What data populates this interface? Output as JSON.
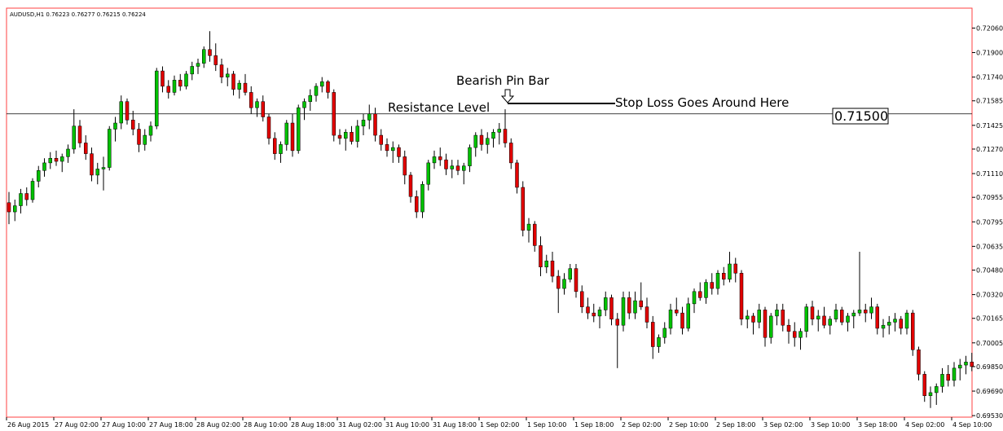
{
  "chart_data": {
    "type": "candlestick",
    "header": "AUDUSD,H1  0.76223 0.76277 0.76215 0.76224",
    "ylim": [
      0.6952,
      0.7219
    ],
    "yticks": [
      {
        "value": 0.7206,
        "label": "0.72060"
      },
      {
        "value": 0.719,
        "label": "0.71900"
      },
      {
        "value": 0.7174,
        "label": "0.71740"
      },
      {
        "value": 0.71585,
        "label": "0.71585"
      },
      {
        "value": 0.71425,
        "label": "0.71425"
      },
      {
        "value": 0.7127,
        "label": "0.71270"
      },
      {
        "value": 0.7111,
        "label": "0.71110"
      },
      {
        "value": 0.70955,
        "label": "0.70955"
      },
      {
        "value": 0.70795,
        "label": "0.70795"
      },
      {
        "value": 0.70635,
        "label": "0.70635"
      },
      {
        "value": 0.7048,
        "label": "0.70480"
      },
      {
        "value": 0.7032,
        "label": "0.70320"
      },
      {
        "value": 0.70165,
        "label": "0.70165"
      },
      {
        "value": 0.70005,
        "label": "0.70005"
      },
      {
        "value": 0.6985,
        "label": "0.69850"
      },
      {
        "value": 0.6969,
        "label": "0.69690"
      },
      {
        "value": 0.6953,
        "label": "0.69530"
      }
    ],
    "up_color": "#00c000",
    "down_color": "#e00000",
    "wick_color": "#000000",
    "level": {
      "value": 0.715,
      "label": "0.71500"
    },
    "annotations": {
      "pin_bar": "Bearish Pin Bar",
      "resistance": "Resistance Level",
      "stop_loss": "Stop Loss Goes Around Here"
    },
    "categories": [
      "26 Aug 2015",
      null,
      null,
      null,
      null,
      null,
      null,
      null,
      "27 Aug 02:00",
      null,
      null,
      null,
      null,
      null,
      null,
      null,
      "27 Aug 10:00",
      null,
      null,
      null,
      null,
      null,
      null,
      null,
      "27 Aug 18:00",
      null,
      null,
      null,
      null,
      null,
      null,
      null,
      "28 Aug 02:00",
      null,
      null,
      null,
      null,
      null,
      null,
      null,
      "28 Aug 10:00",
      null,
      null,
      null,
      null,
      null,
      null,
      null,
      "28 Aug 18:00",
      null,
      null,
      null,
      null,
      null,
      null,
      null,
      "31 Aug 02:00",
      null,
      null,
      null,
      null,
      null,
      null,
      null,
      "31 Aug 10:00",
      null,
      null,
      null,
      null,
      null,
      null,
      null,
      "31 Aug 18:00",
      null,
      null,
      null,
      null,
      null,
      null,
      null,
      "1 Sep 02:00",
      null,
      null,
      null,
      null,
      null,
      null,
      null,
      "1 Sep 10:00",
      null,
      null,
      null,
      null,
      null,
      null,
      null,
      "1 Sep 18:00",
      null,
      null,
      null,
      null,
      null,
      null,
      null,
      "2 Sep 02:00",
      null,
      null,
      null,
      null,
      null,
      null,
      null,
      "2 Sep 10:00",
      null,
      null,
      null,
      null,
      null,
      null,
      null,
      "2 Sep 18:00",
      null,
      null,
      null,
      null,
      null,
      null,
      null,
      "3 Sep 02:00",
      null,
      null,
      null,
      null,
      null,
      null,
      null,
      "3 Sep 10:00",
      null,
      null,
      null,
      null,
      null,
      null,
      null,
      "3 Sep 18:00",
      null,
      null,
      null,
      null,
      null,
      null,
      null,
      "4 Sep 02:00",
      null,
      null,
      null,
      null,
      null,
      null,
      null,
      "4 Sep 10:00",
      null,
      null,
      null
    ],
    "ohlc": [
      [
        0.7092,
        0.7099,
        0.7078,
        0.7086
      ],
      [
        0.7086,
        0.7094,
        0.708,
        0.709
      ],
      [
        0.709,
        0.7101,
        0.7085,
        0.7098
      ],
      [
        0.7098,
        0.7102,
        0.709,
        0.7094
      ],
      [
        0.7094,
        0.7108,
        0.7092,
        0.7106
      ],
      [
        0.7106,
        0.7116,
        0.7102,
        0.7113
      ],
      [
        0.7113,
        0.7121,
        0.7109,
        0.7118
      ],
      [
        0.7118,
        0.7125,
        0.7114,
        0.7121
      ],
      [
        0.7121,
        0.7126,
        0.7116,
        0.7119
      ],
      [
        0.7119,
        0.7124,
        0.7112,
        0.7122
      ],
      [
        0.7122,
        0.713,
        0.7118,
        0.7127
      ],
      [
        0.7127,
        0.7153,
        0.7124,
        0.7142
      ],
      [
        0.7142,
        0.7146,
        0.7128,
        0.7131
      ],
      [
        0.7131,
        0.7136,
        0.712,
        0.7124
      ],
      [
        0.7124,
        0.7128,
        0.7106,
        0.711
      ],
      [
        0.711,
        0.7118,
        0.7104,
        0.7114
      ],
      [
        0.7114,
        0.7122,
        0.71,
        0.7115
      ],
      [
        0.7115,
        0.7142,
        0.7113,
        0.714
      ],
      [
        0.714,
        0.7148,
        0.7132,
        0.7144
      ],
      [
        0.7144,
        0.7162,
        0.714,
        0.7158
      ],
      [
        0.7158,
        0.716,
        0.7143,
        0.7146
      ],
      [
        0.7146,
        0.7152,
        0.7136,
        0.714
      ],
      [
        0.714,
        0.7144,
        0.7125,
        0.713
      ],
      [
        0.713,
        0.714,
        0.7126,
        0.7136
      ],
      [
        0.7136,
        0.7145,
        0.7132,
        0.7142
      ],
      [
        0.7142,
        0.718,
        0.714,
        0.7178
      ],
      [
        0.7178,
        0.7181,
        0.7164,
        0.7168
      ],
      [
        0.7168,
        0.7172,
        0.716,
        0.7164
      ],
      [
        0.7164,
        0.7175,
        0.7162,
        0.7172
      ],
      [
        0.7172,
        0.7176,
        0.7165,
        0.7168
      ],
      [
        0.7168,
        0.7178,
        0.7166,
        0.7176
      ],
      [
        0.7176,
        0.7184,
        0.7172,
        0.7181
      ],
      [
        0.7181,
        0.7186,
        0.7176,
        0.7183
      ],
      [
        0.7183,
        0.7194,
        0.718,
        0.7192
      ],
      [
        0.7192,
        0.7204,
        0.7184,
        0.7188
      ],
      [
        0.7188,
        0.7196,
        0.7178,
        0.7182
      ],
      [
        0.7182,
        0.7186,
        0.717,
        0.7174
      ],
      [
        0.7174,
        0.718,
        0.7168,
        0.7176
      ],
      [
        0.7176,
        0.7178,
        0.7162,
        0.7166
      ],
      [
        0.7166,
        0.7172,
        0.716,
        0.717
      ],
      [
        0.717,
        0.7176,
        0.7162,
        0.7164
      ],
      [
        0.7164,
        0.7168,
        0.715,
        0.7154
      ],
      [
        0.7154,
        0.716,
        0.7148,
        0.7158
      ],
      [
        0.7158,
        0.7162,
        0.7145,
        0.7148
      ],
      [
        0.7148,
        0.715,
        0.713,
        0.7134
      ],
      [
        0.7134,
        0.7138,
        0.712,
        0.7124
      ],
      [
        0.7124,
        0.7132,
        0.7118,
        0.713
      ],
      [
        0.713,
        0.7146,
        0.7126,
        0.7144
      ],
      [
        0.7144,
        0.715,
        0.7122,
        0.7126
      ],
      [
        0.7126,
        0.7156,
        0.7124,
        0.7154
      ],
      [
        0.7154,
        0.716,
        0.7146,
        0.7158
      ],
      [
        0.7158,
        0.7166,
        0.7152,
        0.7162
      ],
      [
        0.7162,
        0.717,
        0.7158,
        0.7168
      ],
      [
        0.7168,
        0.7174,
        0.7164,
        0.7171
      ],
      [
        0.7171,
        0.7172,
        0.716,
        0.7164
      ],
      [
        0.7164,
        0.7166,
        0.7132,
        0.7136
      ],
      [
        0.7136,
        0.714,
        0.713,
        0.7134
      ],
      [
        0.7134,
        0.714,
        0.7126,
        0.7138
      ],
      [
        0.7138,
        0.7142,
        0.713,
        0.7132
      ],
      [
        0.7132,
        0.7146,
        0.7128,
        0.7142
      ],
      [
        0.7142,
        0.715,
        0.7136,
        0.7146
      ],
      [
        0.7146,
        0.7156,
        0.714,
        0.715
      ],
      [
        0.715,
        0.7154,
        0.7132,
        0.7136
      ],
      [
        0.7136,
        0.714,
        0.7126,
        0.713
      ],
      [
        0.713,
        0.7134,
        0.7122,
        0.7126
      ],
      [
        0.7126,
        0.7132,
        0.7118,
        0.7128
      ],
      [
        0.7128,
        0.713,
        0.7118,
        0.7122
      ],
      [
        0.7122,
        0.7126,
        0.7104,
        0.711
      ],
      [
        0.711,
        0.7112,
        0.7092,
        0.7096
      ],
      [
        0.7096,
        0.71,
        0.7082,
        0.7086
      ],
      [
        0.7086,
        0.7106,
        0.7082,
        0.7104
      ],
      [
        0.7104,
        0.712,
        0.71,
        0.7118
      ],
      [
        0.7118,
        0.7126,
        0.7114,
        0.7122
      ],
      [
        0.7122,
        0.7128,
        0.7116,
        0.712
      ],
      [
        0.712,
        0.7124,
        0.711,
        0.7114
      ],
      [
        0.7114,
        0.712,
        0.7108,
        0.7116
      ],
      [
        0.7116,
        0.712,
        0.711,
        0.7113
      ],
      [
        0.7113,
        0.7118,
        0.7104,
        0.7116
      ],
      [
        0.7116,
        0.713,
        0.7112,
        0.7128
      ],
      [
        0.7128,
        0.7138,
        0.7122,
        0.7136
      ],
      [
        0.7136,
        0.714,
        0.7126,
        0.713
      ],
      [
        0.713,
        0.7138,
        0.7124,
        0.7134
      ],
      [
        0.7134,
        0.714,
        0.7128,
        0.7138
      ],
      [
        0.7138,
        0.7144,
        0.713,
        0.714
      ],
      [
        0.714,
        0.7153,
        0.7128,
        0.7131
      ],
      [
        0.7131,
        0.7134,
        0.7114,
        0.7118
      ],
      [
        0.7118,
        0.712,
        0.7098,
        0.7102
      ],
      [
        0.7102,
        0.7106,
        0.707,
        0.7074
      ],
      [
        0.7074,
        0.7082,
        0.7066,
        0.7078
      ],
      [
        0.7078,
        0.708,
        0.706,
        0.7064
      ],
      [
        0.7064,
        0.707,
        0.7044,
        0.705
      ],
      [
        0.705,
        0.7058,
        0.7046,
        0.7054
      ],
      [
        0.7054,
        0.706,
        0.704,
        0.7044
      ],
      [
        0.7044,
        0.7048,
        0.702,
        0.7036
      ],
      [
        0.7036,
        0.7046,
        0.7032,
        0.7042
      ],
      [
        0.7042,
        0.7052,
        0.704,
        0.7049
      ],
      [
        0.7049,
        0.7052,
        0.703,
        0.7034
      ],
      [
        0.7034,
        0.7038,
        0.702,
        0.7024
      ],
      [
        0.7024,
        0.703,
        0.7016,
        0.702
      ],
      [
        0.702,
        0.7026,
        0.7014,
        0.7018
      ],
      [
        0.7018,
        0.7024,
        0.701,
        0.7022
      ],
      [
        0.7022,
        0.7034,
        0.7018,
        0.703
      ],
      [
        0.703,
        0.7032,
        0.7012,
        0.7016
      ],
      [
        0.7016,
        0.702,
        0.6984,
        0.7012
      ],
      [
        0.7012,
        0.7034,
        0.7008,
        0.703
      ],
      [
        0.703,
        0.7034,
        0.7016,
        0.702
      ],
      [
        0.702,
        0.7034,
        0.7016,
        0.7028
      ],
      [
        0.7028,
        0.704,
        0.7022,
        0.7024
      ],
      [
        0.7024,
        0.703,
        0.701,
        0.7014
      ],
      [
        0.7014,
        0.7018,
        0.699,
        0.6998
      ],
      [
        0.6998,
        0.7006,
        0.6994,
        0.7004
      ],
      [
        0.7004,
        0.7014,
        0.7,
        0.701
      ],
      [
        0.701,
        0.7026,
        0.7006,
        0.7022
      ],
      [
        0.7022,
        0.703,
        0.7018,
        0.702
      ],
      [
        0.702,
        0.7024,
        0.7006,
        0.701
      ],
      [
        0.701,
        0.703,
        0.7008,
        0.7026
      ],
      [
        0.7026,
        0.7036,
        0.702,
        0.7034
      ],
      [
        0.7034,
        0.704,
        0.7028,
        0.703
      ],
      [
        0.703,
        0.7042,
        0.7026,
        0.704
      ],
      [
        0.704,
        0.7046,
        0.7032,
        0.7036
      ],
      [
        0.7036,
        0.7048,
        0.7032,
        0.7046
      ],
      [
        0.7046,
        0.705,
        0.7038,
        0.7042
      ],
      [
        0.7042,
        0.706,
        0.704,
        0.7052
      ],
      [
        0.7052,
        0.7056,
        0.704,
        0.7046
      ],
      [
        0.7046,
        0.7048,
        0.7012,
        0.7016
      ],
      [
        0.7016,
        0.7022,
        0.701,
        0.7018
      ],
      [
        0.7018,
        0.702,
        0.7006,
        0.7014
      ],
      [
        0.7014,
        0.7026,
        0.701,
        0.7022
      ],
      [
        0.7022,
        0.7024,
        0.6998,
        0.7004
      ],
      [
        0.7004,
        0.702,
        0.7,
        0.7018
      ],
      [
        0.7018,
        0.7026,
        0.7012,
        0.7022
      ],
      [
        0.7022,
        0.7026,
        0.7008,
        0.7012
      ],
      [
        0.7012,
        0.7016,
        0.7,
        0.7008
      ],
      [
        0.7008,
        0.7014,
        0.6998,
        0.7004
      ],
      [
        0.7004,
        0.701,
        0.6996,
        0.7008
      ],
      [
        0.7008,
        0.7026,
        0.7004,
        0.7024
      ],
      [
        0.7024,
        0.7028,
        0.7012,
        0.7016
      ],
      [
        0.7016,
        0.7022,
        0.7008,
        0.7018
      ],
      [
        0.7018,
        0.7024,
        0.701,
        0.7012
      ],
      [
        0.7012,
        0.7018,
        0.7006,
        0.7016
      ],
      [
        0.7016,
        0.7026,
        0.7014,
        0.7022
      ],
      [
        0.7022,
        0.7024,
        0.7012,
        0.7014
      ],
      [
        0.7014,
        0.702,
        0.7008,
        0.7018
      ],
      [
        0.7018,
        0.7022,
        0.701,
        0.702
      ],
      [
        0.702,
        0.706,
        0.7018,
        0.7022
      ],
      [
        0.7022,
        0.7026,
        0.7014,
        0.702
      ],
      [
        0.702,
        0.703,
        0.7016,
        0.7024
      ],
      [
        0.7024,
        0.7026,
        0.7006,
        0.701
      ],
      [
        0.701,
        0.7016,
        0.7004,
        0.7012
      ],
      [
        0.7012,
        0.7018,
        0.7006,
        0.7014
      ],
      [
        0.7014,
        0.702,
        0.7008,
        0.7016
      ],
      [
        0.7016,
        0.7018,
        0.7006,
        0.701
      ],
      [
        0.701,
        0.7022,
        0.7006,
        0.702
      ],
      [
        0.702,
        0.7022,
        0.6992,
        0.6996
      ],
      [
        0.6996,
        0.6998,
        0.6976,
        0.698
      ],
      [
        0.698,
        0.6982,
        0.6962,
        0.6966
      ],
      [
        0.6966,
        0.6972,
        0.6958,
        0.6968
      ],
      [
        0.6968,
        0.6974,
        0.696,
        0.6972
      ],
      [
        0.6972,
        0.6984,
        0.6968,
        0.698
      ],
      [
        0.698,
        0.6986,
        0.6972,
        0.6976
      ],
      [
        0.6976,
        0.6988,
        0.6972,
        0.6984
      ],
      [
        0.6984,
        0.699,
        0.6976,
        0.6986
      ],
      [
        0.6986,
        0.6992,
        0.698,
        0.6988
      ],
      [
        0.6988,
        0.6994,
        0.6982,
        0.6985
      ]
    ]
  }
}
